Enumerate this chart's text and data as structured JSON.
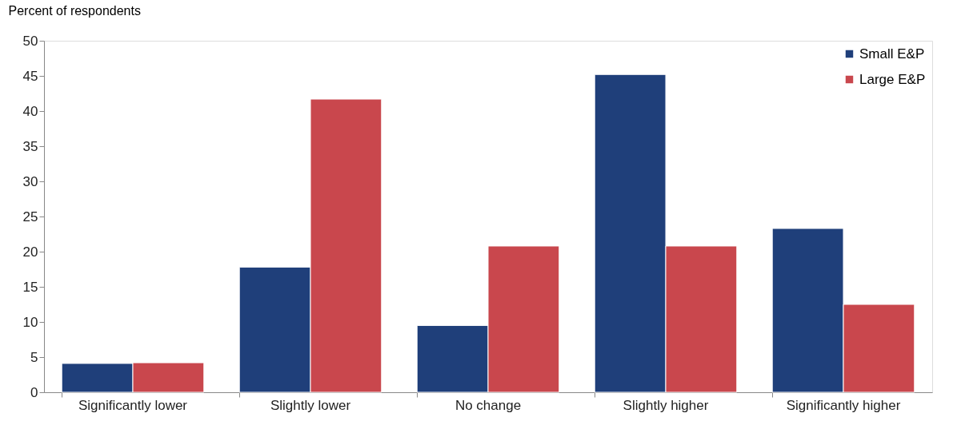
{
  "chart_data": {
    "type": "bar",
    "ylabel": "Percent of respondents",
    "categories": [
      "Significantly lower",
      "Slightly lower",
      "No change",
      "Slightly higher",
      "Significantly higher"
    ],
    "series": [
      {
        "name": "Small E&P",
        "color": "#1f3f7a",
        "values": [
          4.1,
          17.8,
          9.5,
          45.2,
          23.3
        ]
      },
      {
        "name": "Large E&P",
        "color": "#c9474d",
        "values": [
          4.2,
          41.7,
          20.8,
          20.8,
          12.5
        ]
      }
    ],
    "ylim": [
      0,
      50
    ],
    "yticks": [
      0,
      5,
      10,
      15,
      20,
      25,
      30,
      35,
      40,
      45,
      50
    ],
    "grid": false,
    "legend": "top right"
  }
}
